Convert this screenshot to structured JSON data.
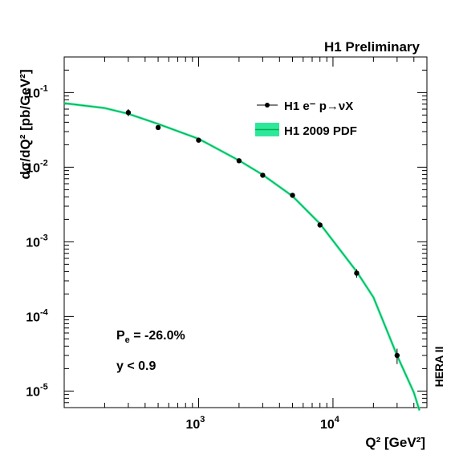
{
  "header": {
    "title": "H1 Preliminary",
    "side_label": "HERA II"
  },
  "annotations": {
    "polarisation_main": "P",
    "polarisation_sub": "e",
    "polarisation_value": " = -26.0%",
    "y_cut": "y < 0.9"
  },
  "legend": {
    "data_label": "H1 e⁻ p→νX",
    "band_label": "H1 2009 PDF",
    "band_color": "#2ee89a",
    "line_color": "#00b050"
  },
  "axes": {
    "ylabel": "dσ/dQ² [pb/GeV²]",
    "xlabel": "Q² [GeV²]",
    "xticks": [
      {
        "base": "10",
        "exp": "3",
        "value": 1000
      },
      {
        "base": "10",
        "exp": "4",
        "value": 10000
      }
    ],
    "yticks": [
      {
        "base": "10",
        "exp": "-1",
        "value": 0.1
      },
      {
        "base": "10",
        "exp": "-2",
        "value": 0.01
      },
      {
        "base": "10",
        "exp": "-3",
        "value": 0.001
      },
      {
        "base": "10",
        "exp": "-4",
        "value": 0.0001
      },
      {
        "base": "10",
        "exp": "-5",
        "value": 1e-05
      }
    ]
  },
  "chart_data": {
    "type": "scatter",
    "title": "H1 Preliminary",
    "xlabel": "Q² [GeV²]",
    "ylabel": "dσ/dQ² [pb/GeV²]",
    "xscale": "log",
    "yscale": "log",
    "xlim": [
      100,
      50000
    ],
    "ylim": [
      6e-06,
      0.3
    ],
    "legend_position": "top-right",
    "series": [
      {
        "name": "H1 e⁻ p→νX",
        "kind": "points",
        "x": [
          300,
          500,
          1000,
          2000,
          3000,
          5000,
          8000,
          15000,
          30000
        ],
        "y": [
          0.054,
          0.034,
          0.023,
          0.0122,
          0.0078,
          0.0042,
          0.00168,
          0.00038,
          3e-05
        ],
        "yerr": [
          0.006,
          0.002,
          0.0012,
          0.0007,
          0.0005,
          0.0003,
          0.00013,
          5e-05,
          7e-06
        ]
      },
      {
        "name": "H1 2009 PDF",
        "kind": "curve",
        "x": [
          100,
          200,
          300,
          500,
          1000,
          2000,
          3000,
          5000,
          8000,
          15000,
          20000,
          30000,
          40000,
          44000
        ],
        "y": [
          0.072,
          0.062,
          0.052,
          0.038,
          0.024,
          0.0123,
          0.0079,
          0.0041,
          0.00175,
          0.0004,
          0.00018,
          3e-05,
          9.5e-06,
          5.5e-06
        ]
      }
    ]
  }
}
